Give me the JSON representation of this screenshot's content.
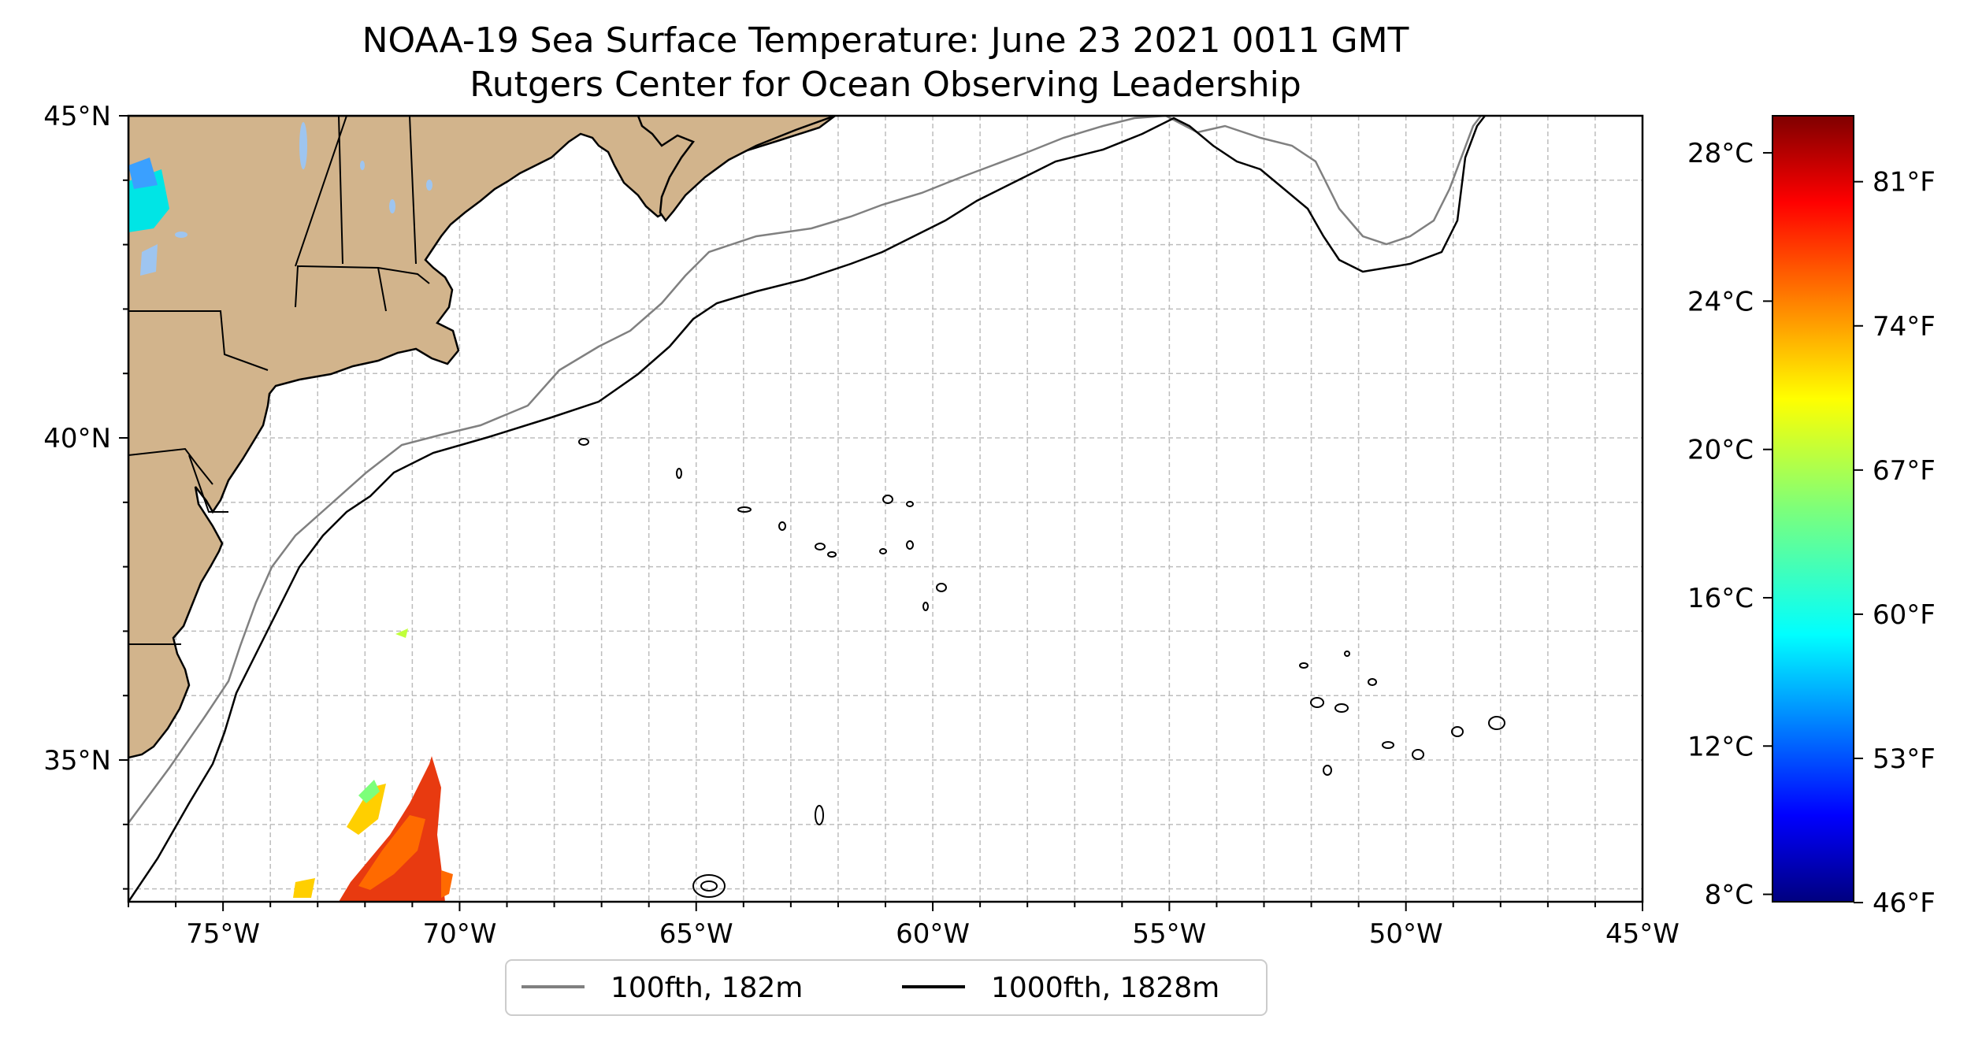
{
  "title": {
    "line1": "NOAA-19 Sea Surface Temperature: June 23 2021 0011 GMT",
    "line2": "Rutgers Center for Ocean Observing Leadership"
  },
  "map": {
    "lon_range": [
      -77,
      -45
    ],
    "lat_range": [
      32.8,
      45
    ],
    "lon_ticks": [
      {
        "value": -75,
        "label": "75°W"
      },
      {
        "value": -70,
        "label": "70°W"
      },
      {
        "value": -65,
        "label": "65°W"
      },
      {
        "value": -60,
        "label": "60°W"
      },
      {
        "value": -55,
        "label": "55°W"
      },
      {
        "value": -50,
        "label": "50°W"
      },
      {
        "value": -45,
        "label": "45°W"
      }
    ],
    "lat_ticks": [
      {
        "value": 45,
        "label": "45°N"
      },
      {
        "value": 40,
        "label": "40°N"
      },
      {
        "value": 35,
        "label": "35°N"
      }
    ],
    "grid": true,
    "land_color": "#d2b48c",
    "ocean_color": "#ffffff"
  },
  "legend": {
    "items": [
      {
        "label": "100fth, 182m",
        "color": "#808080"
      },
      {
        "label": "1000fth, 1828m",
        "color": "#000000"
      }
    ],
    "placement": "bottom-center"
  },
  "colorbar": {
    "colormap": "jet",
    "range_c": [
      7.8,
      29.0
    ],
    "celsius_ticks": [
      {
        "value": 28,
        "label": "28°C"
      },
      {
        "value": 24,
        "label": "24°C"
      },
      {
        "value": 20,
        "label": "20°C"
      },
      {
        "value": 16,
        "label": "16°C"
      },
      {
        "value": 12,
        "label": "12°C"
      },
      {
        "value": 8,
        "label": "8°C"
      }
    ],
    "fahrenheit_ticks": [
      {
        "value": 81,
        "label": "81°F"
      },
      {
        "value": 74,
        "label": "74°F"
      },
      {
        "value": 67,
        "label": "67°F"
      },
      {
        "value": 60,
        "label": "60°F"
      },
      {
        "value": 53,
        "label": "53°F"
      },
      {
        "value": 46,
        "label": "46°F"
      }
    ]
  }
}
